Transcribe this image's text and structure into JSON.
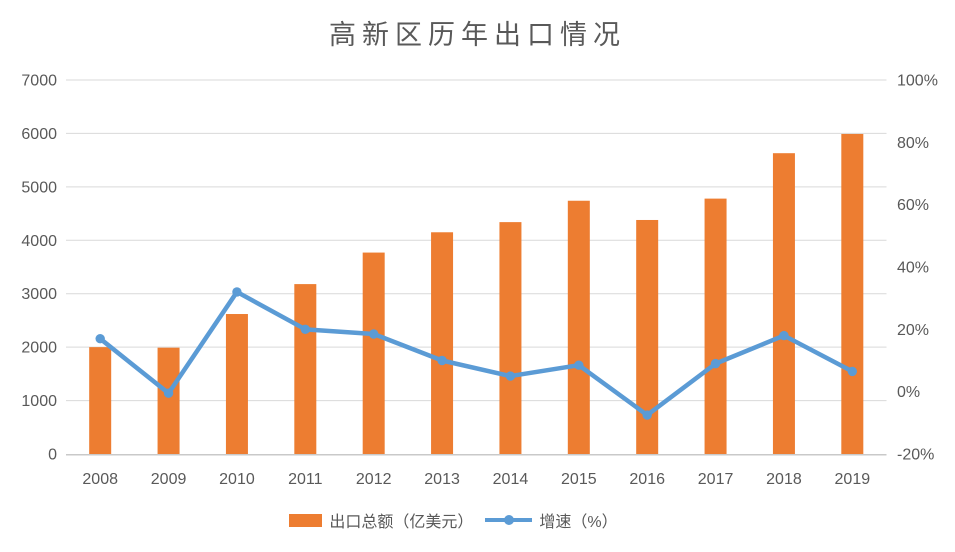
{
  "colors": {
    "bar": "#ED7D31",
    "line": "#5B9BD5",
    "gridline": "#D9D9D9",
    "axis_line": "#C9C9C9",
    "text": "#595959",
    "title_text": "#595959",
    "background": "#FFFFFF"
  },
  "chart_data": {
    "type": "bar+line combo",
    "title": "高新区历年出口情况",
    "categories": [
      "2008",
      "2009",
      "2010",
      "2011",
      "2012",
      "2013",
      "2014",
      "2015",
      "2016",
      "2017",
      "2018",
      "2019"
    ],
    "series": [
      {
        "name": "出口总额（亿美元）",
        "type": "bar",
        "axis": "left",
        "color": "#ED7D31",
        "values": [
          2000,
          1990,
          2620,
          3180,
          3770,
          4150,
          4340,
          4740,
          4380,
          4780,
          5630,
          5990
        ]
      },
      {
        "name": "增速（%）",
        "type": "line",
        "axis": "right",
        "color": "#5B9BD5",
        "values": [
          17,
          -0.5,
          32,
          20,
          18.5,
          10,
          5,
          8.5,
          -7.5,
          9,
          18,
          6.5
        ]
      }
    ],
    "left_axis": {
      "min": 0,
      "max": 7000,
      "step": 1000,
      "tick_labels": [
        "0",
        "1000",
        "2000",
        "3000",
        "4000",
        "5000",
        "6000",
        "7000"
      ]
    },
    "right_axis": {
      "min": -20,
      "max": 100,
      "step": 20,
      "tick_labels": [
        "-20%",
        "0%",
        "20%",
        "40%",
        "60%",
        "80%",
        "100%"
      ]
    },
    "grid": "horizontal only",
    "legend_position": "bottom"
  }
}
